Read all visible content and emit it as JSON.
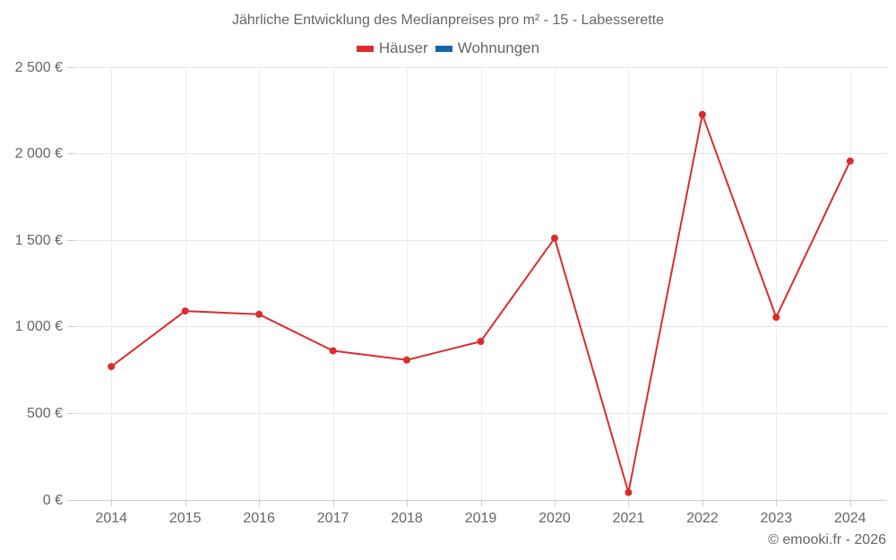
{
  "chart_data": {
    "type": "line",
    "title": "Jährliche Entwicklung des Medianpreises pro m² - 15 - Labesserette",
    "xlabel": "",
    "ylabel": "",
    "categories": [
      "2014",
      "2015",
      "2016",
      "2017",
      "2018",
      "2019",
      "2020",
      "2021",
      "2022",
      "2023",
      "2024"
    ],
    "series": [
      {
        "name": "Häuser",
        "color": "#dd2b2b",
        "values": [
          768,
          1089,
          1070,
          859,
          806,
          913,
          1510,
          41,
          2224,
          1053,
          1955
        ]
      },
      {
        "name": "Wohnungen",
        "color": "#1764a8",
        "values": []
      }
    ],
    "ylim": [
      0,
      2500
    ],
    "yticks": [
      0,
      500,
      1000,
      1500,
      2000,
      2500
    ],
    "ytick_labels": [
      "0 €",
      "500 €",
      "1 000 €",
      "1 500 €",
      "2 000 €",
      "2 500 €"
    ],
    "grid": true,
    "legend_position": "top-center"
  },
  "legend": {
    "items": [
      {
        "label": "Häuser",
        "color": "#dd2b2b"
      },
      {
        "label": "Wohnungen",
        "color": "#1764a8"
      }
    ]
  },
  "credits": "© emooki.fr - 2026"
}
